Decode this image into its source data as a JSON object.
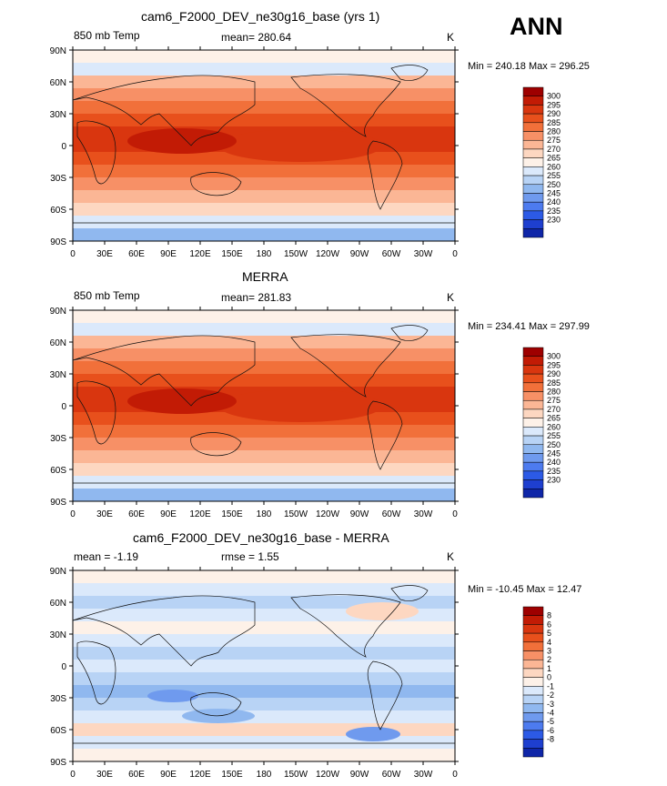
{
  "season": "ANN",
  "land_color": "#ffffff",
  "panels": [
    {
      "title": "cam6_F2000_DEV_ne30g16_base (yrs 1)",
      "left_label": "850 mb Temp",
      "center_label": "mean= 280.64",
      "right_label": "K",
      "minmax": "Min = 240.18 Max = 296.25",
      "colorbar": {
        "levels": [
          "300",
          "295",
          "290",
          "285",
          "280",
          "275",
          "270",
          "265",
          "260",
          "255",
          "250",
          "245",
          "240",
          "235",
          "230"
        ],
        "colors": [
          "#9e0000",
          "#c21b05",
          "#d9360f",
          "#e8501c",
          "#f1703a",
          "#f79066",
          "#fbb695",
          "#fdd7c1",
          "#fdf1e8",
          "#dbe9fb",
          "#b8d3f5",
          "#90b8ef",
          "#6f9aee",
          "#4d7bef",
          "#2c5ae6",
          "#1e3fcf",
          "#0f26a8"
        ]
      }
    },
    {
      "title": "MERRA",
      "left_label": "850 mb Temp",
      "center_label": "mean= 281.83",
      "right_label": "K",
      "minmax": "Min = 234.41 Max = 297.99",
      "colorbar": {
        "levels": [
          "300",
          "295",
          "290",
          "285",
          "280",
          "275",
          "270",
          "265",
          "260",
          "255",
          "250",
          "245",
          "240",
          "235",
          "230"
        ],
        "colors": [
          "#9e0000",
          "#c21b05",
          "#d9360f",
          "#e8501c",
          "#f1703a",
          "#f79066",
          "#fbb695",
          "#fdd7c1",
          "#fdf1e8",
          "#dbe9fb",
          "#b8d3f5",
          "#90b8ef",
          "#6f9aee",
          "#4d7bef",
          "#2c5ae6",
          "#1e3fcf",
          "#0f26a8"
        ]
      }
    },
    {
      "title": "cam6_F2000_DEV_ne30g16_base - MERRA",
      "left_label": "mean =   -1.19",
      "center_label": "rmse =    1.55",
      "right_label": "K",
      "minmax": "Min = -10.45 Max =  12.47",
      "colorbar": {
        "levels": [
          "8",
          "6",
          "5",
          "4",
          "3",
          "2",
          "1",
          "0",
          "-1",
          "-2",
          "-3",
          "-4",
          "-5",
          "-6",
          "-8"
        ],
        "colors": [
          "#9e0000",
          "#c21b05",
          "#d9360f",
          "#e8501c",
          "#f1703a",
          "#f79066",
          "#fbb695",
          "#fdd7c1",
          "#fdf1e8",
          "#dbe9fb",
          "#b8d3f5",
          "#90b8ef",
          "#6f9aee",
          "#4d7bef",
          "#2c5ae6",
          "#1e3fcf",
          "#0f26a8"
        ]
      }
    }
  ],
  "chart_data": {
    "type": "heatmap",
    "x_ticks": [
      "0",
      "30E",
      "60E",
      "90E",
      "120E",
      "150E",
      "180",
      "150W",
      "120W",
      "90W",
      "60W",
      "30W",
      "0"
    ],
    "y_ticks": [
      "90N",
      "60N",
      "30N",
      "0",
      "30S",
      "60S",
      "90S"
    ],
    "xlim": [
      0,
      360
    ],
    "ylim": [
      -90,
      90
    ]
  }
}
